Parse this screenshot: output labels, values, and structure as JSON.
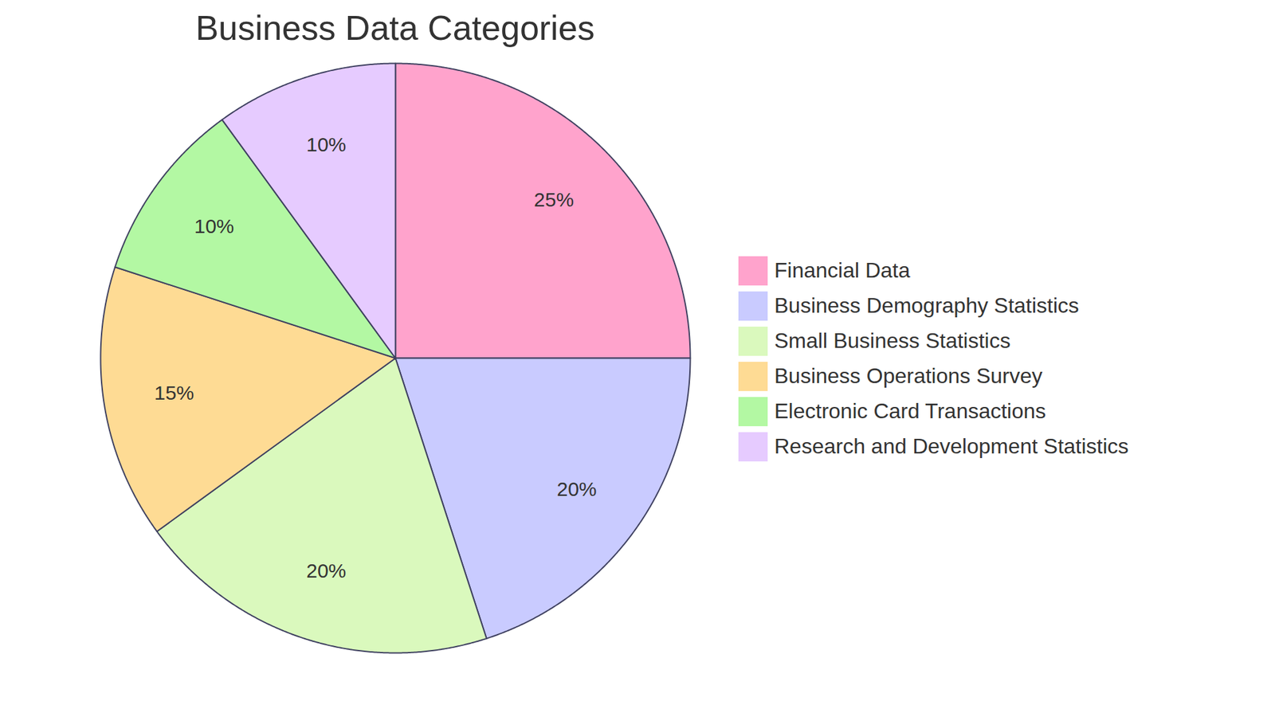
{
  "chart_data": {
    "type": "pie",
    "title": "Business Data Categories",
    "categories": [
      "Financial Data",
      "Business Demography Statistics",
      "Small Business Statistics",
      "Business Operations Survey",
      "Electronic Card Transactions",
      "Research and Development Statistics"
    ],
    "values": [
      25,
      20,
      20,
      15,
      10,
      10
    ],
    "value_labels": [
      "25%",
      "20%",
      "20%",
      "15%",
      "10%",
      "10%"
    ],
    "colors": [
      "#FFA3CC",
      "#C9CBFF",
      "#DAF9BD",
      "#FEDB94",
      "#B3F8A3",
      "#E6CBFF"
    ],
    "data_labels": true,
    "legend": "right"
  }
}
